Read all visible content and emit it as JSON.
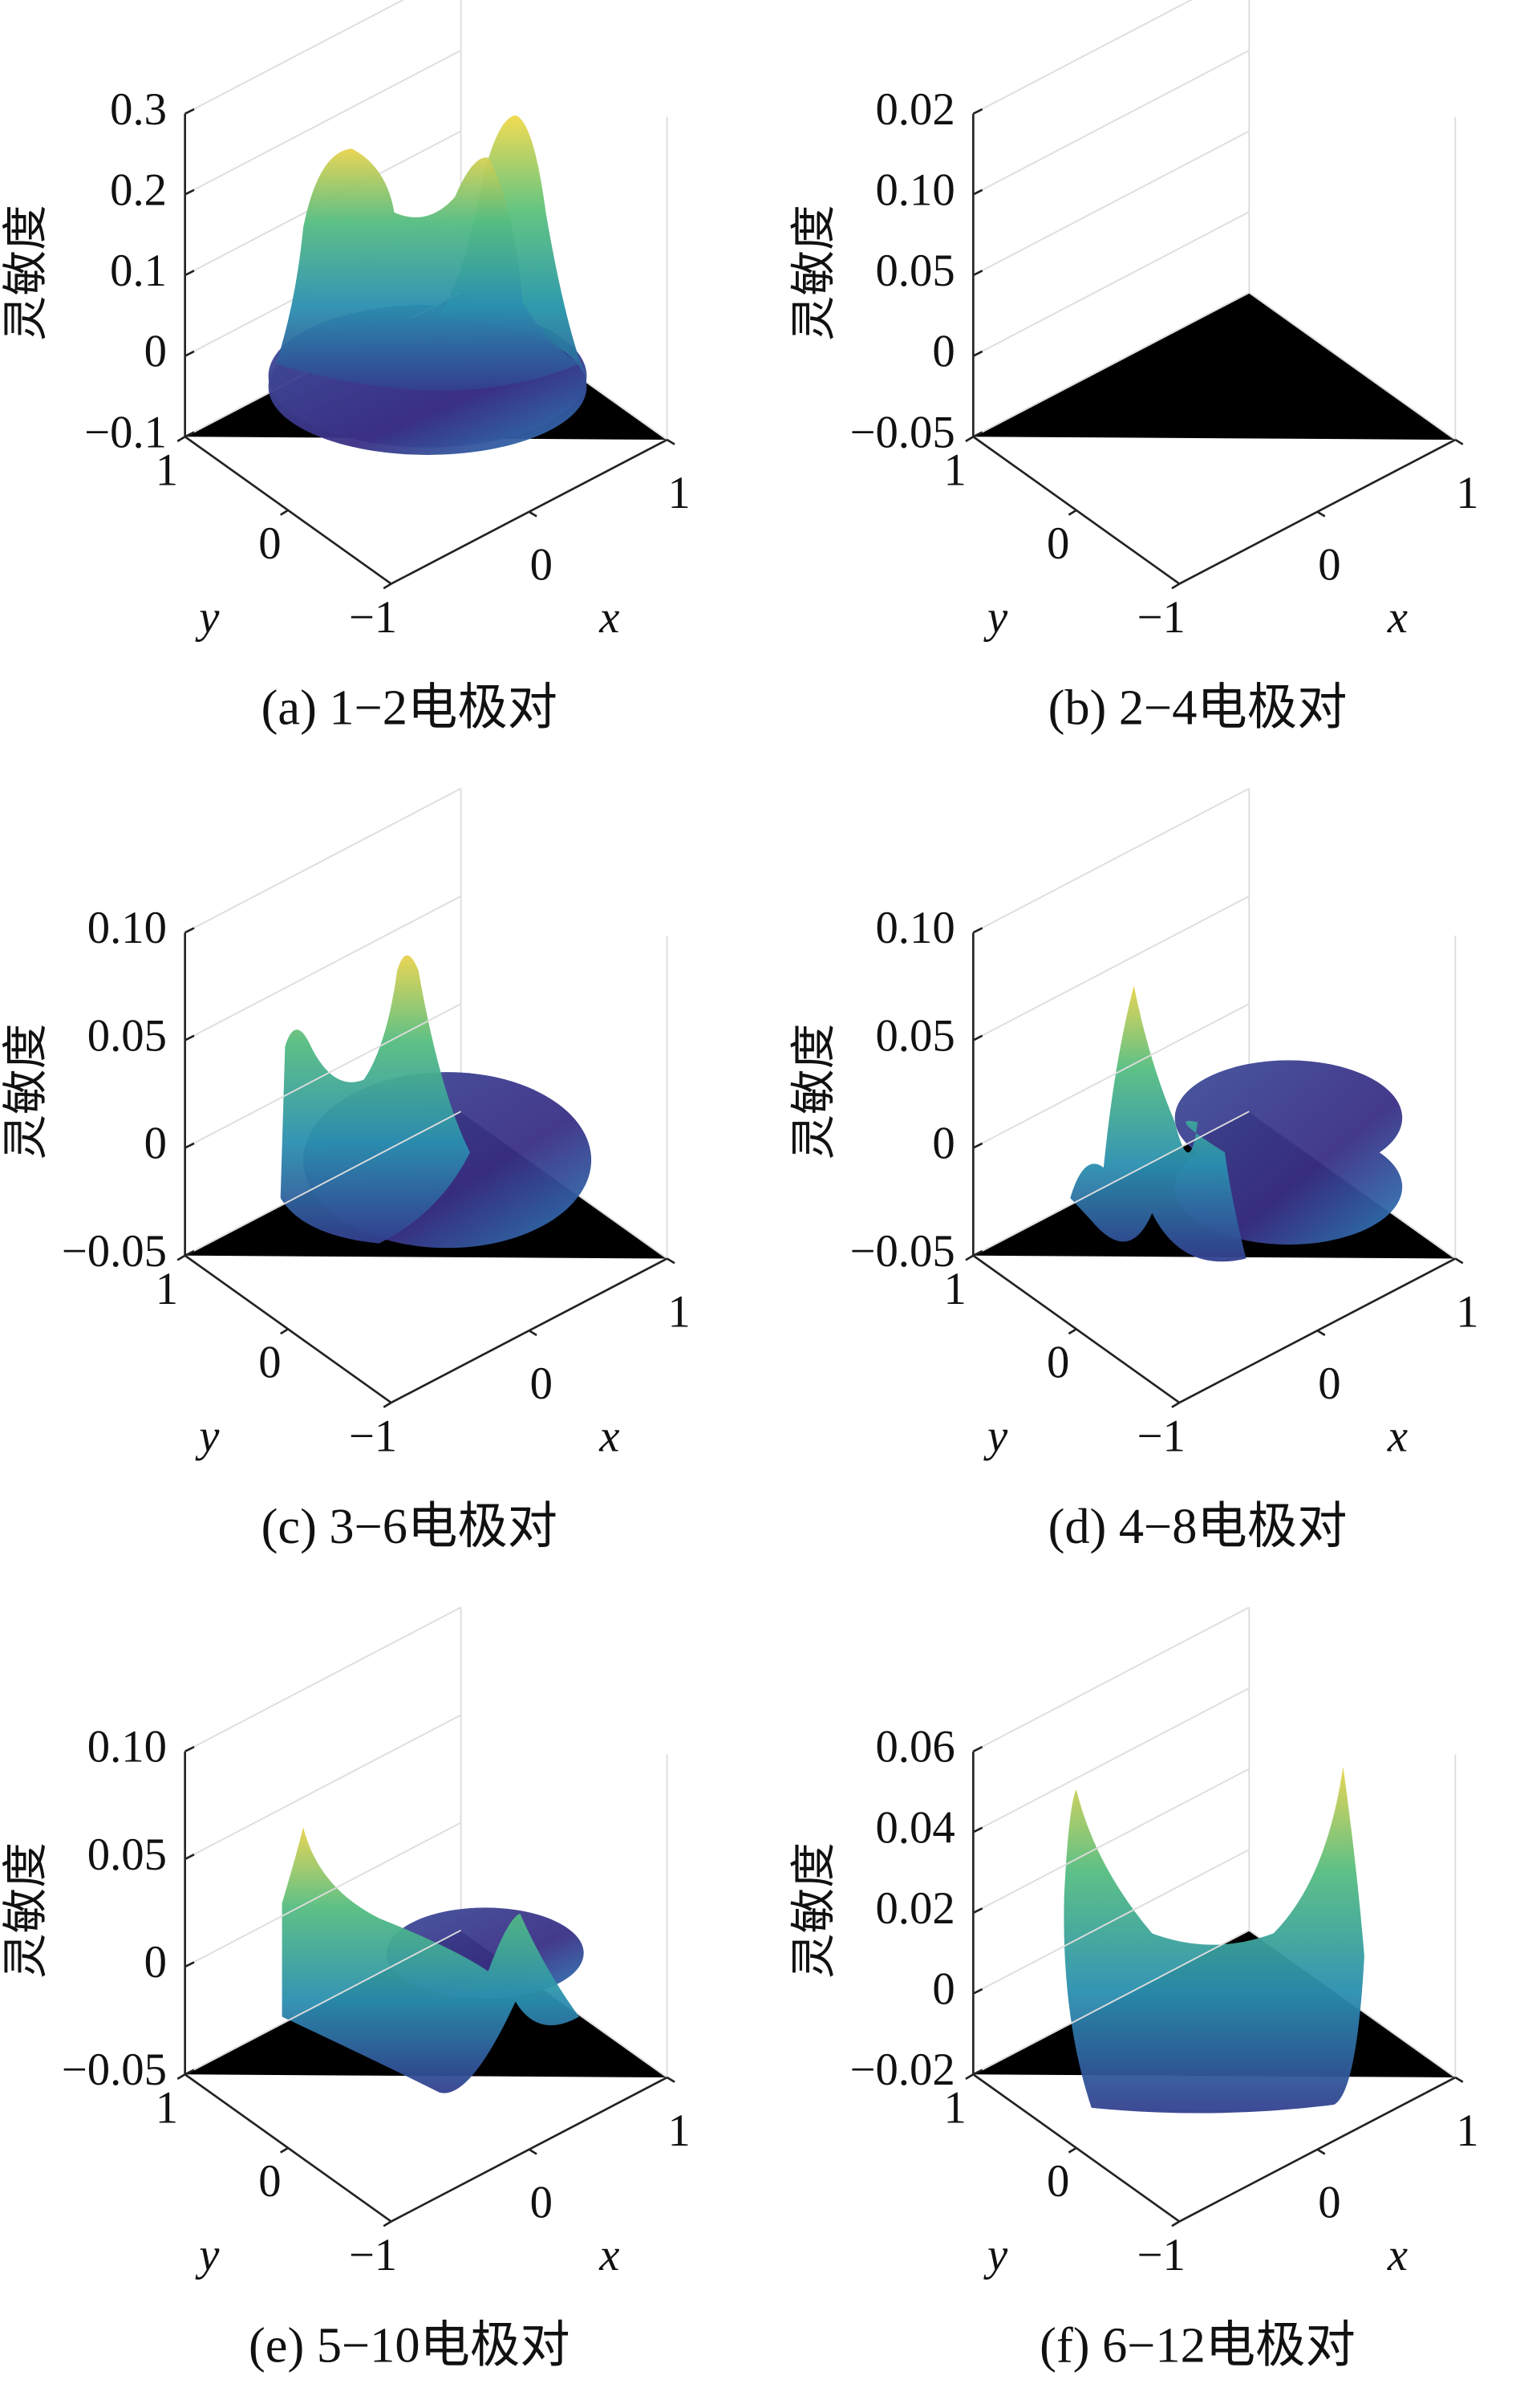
{
  "charts": [
    {
      "type": "surface3d",
      "caption": "(a) 1−2电极对",
      "zlabel": "灵敏度",
      "xlabel": "x",
      "ylabel": "y",
      "zticks": [
        {
          "value": -0.1,
          "label": "−0.1"
        },
        0,
        0.1,
        0.2,
        0.3
      ],
      "xticks": [
        0,
        1
      ],
      "yticks": [
        {
          "value": -1,
          "label": "−1"
        },
        0,
        1
      ]
    },
    {
      "type": "surface3d",
      "caption": "(b) 2−4电极对",
      "zlabel": "灵敏度",
      "xlabel": "x",
      "ylabel": "y",
      "zticks": [
        {
          "value": -0.05,
          "label": "−0.05"
        },
        0,
        0.05,
        {
          "value": 0.1,
          "label": "0.10"
        },
        0.02
      ],
      "xticks": [
        0,
        1
      ],
      "yticks": [
        {
          "value": -1,
          "label": "−1"
        },
        0,
        1
      ]
    },
    {
      "type": "surface3d",
      "caption": "(c) 3−6电极对",
      "zlabel": "灵敏度",
      "xlabel": "x",
      "ylabel": "y",
      "zticks": [
        {
          "value": -0.05,
          "label": "−0.05"
        },
        0,
        0.05,
        {
          "value": 0.1,
          "label": "0.10"
        }
      ],
      "xticks": [
        0,
        1
      ],
      "yticks": [
        {
          "value": -1,
          "label": "−1"
        },
        0,
        1
      ]
    },
    {
      "type": "surface3d",
      "caption": "(d) 4−8电极对",
      "zlabel": "灵敏度",
      "xlabel": "x",
      "ylabel": "y",
      "zticks": [
        {
          "value": -0.05,
          "label": "−0.05"
        },
        0,
        0.05,
        {
          "value": 0.1,
          "label": "0.10"
        }
      ],
      "xticks": [
        0,
        1
      ],
      "yticks": [
        {
          "value": -1,
          "label": "−1"
        },
        0,
        1
      ]
    },
    {
      "type": "surface3d",
      "caption": "(e) 5−10电极对",
      "zlabel": "灵敏度",
      "xlabel": "x",
      "ylabel": "y",
      "zticks": [
        {
          "value": -0.05,
          "label": "−0.05"
        },
        0,
        0.05,
        {
          "value": 0.1,
          "label": "0.10"
        }
      ],
      "xticks": [
        0,
        1
      ],
      "yticks": [
        {
          "value": -1,
          "label": "−1"
        },
        0,
        1
      ]
    },
    {
      "type": "surface3d",
      "caption": "(f) 6−12电极对",
      "zlabel": "灵敏度",
      "xlabel": "x",
      "ylabel": "y",
      "zticks": [
        {
          "value": -0.02,
          "label": "−0.02"
        },
        0,
        0.02,
        0.04,
        0.06
      ],
      "xticks": [
        0,
        1
      ],
      "yticks": [
        {
          "value": -1,
          "label": "−1"
        },
        0,
        1
      ]
    }
  ]
}
